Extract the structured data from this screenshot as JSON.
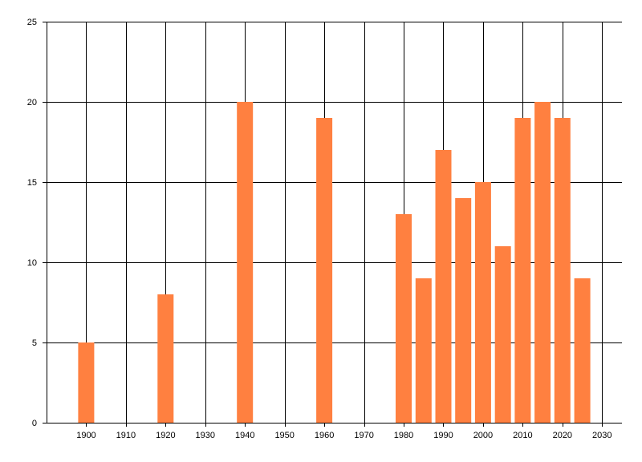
{
  "chart_data": {
    "type": "bar",
    "title": "",
    "xlabel": "",
    "ylabel": "",
    "x": [
      1900,
      1920,
      1940,
      1960,
      1980,
      1985,
      1990,
      1995,
      2000,
      2005,
      2010,
      2015,
      2020,
      2025
    ],
    "values": [
      5,
      8,
      20,
      19,
      13,
      9,
      17,
      14,
      15,
      11,
      19,
      20,
      19,
      9
    ],
    "xlim": [
      1890,
      2035
    ],
    "ylim": [
      0,
      25
    ],
    "xticks": [
      1900,
      1910,
      1920,
      1930,
      1940,
      1950,
      1960,
      1970,
      1980,
      1990,
      2000,
      2010,
      2020,
      2030
    ],
    "yticks": [
      0,
      5,
      10,
      15,
      20,
      25
    ],
    "grid": true,
    "legend": "none",
    "bar_color": "#FF8040",
    "grid_color": "#000000"
  }
}
